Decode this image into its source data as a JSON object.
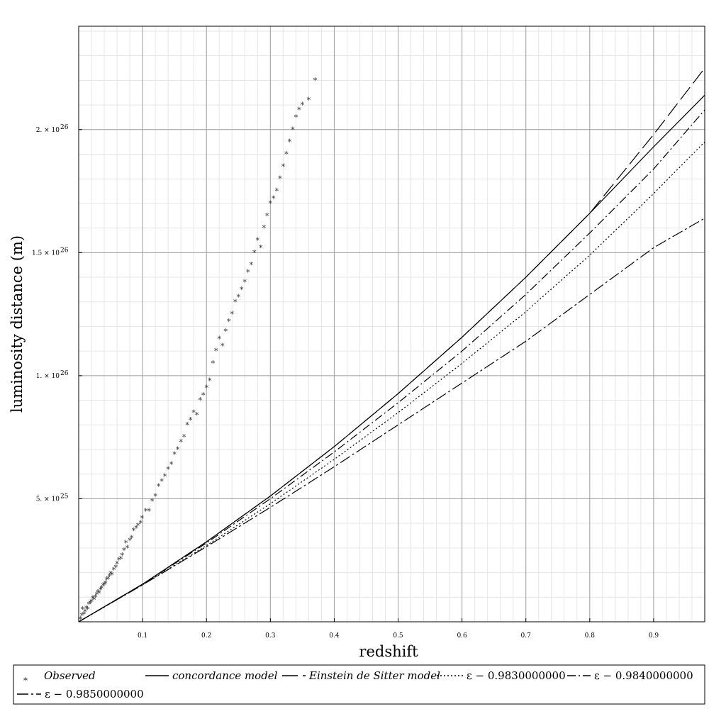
{
  "chart_data": {
    "type": "line",
    "title": "",
    "xlabel": "redshift",
    "ylabel": "luminosity distance (m)",
    "xlim": [
      0.0,
      0.98
    ],
    "ylim": [
      0,
      2.42e+26
    ],
    "x_ticks": [
      {
        "value": 0.1,
        "label": "0.1"
      },
      {
        "value": 0.2,
        "label": "0.2"
      },
      {
        "value": 0.3,
        "label": "0.3"
      },
      {
        "value": 0.4,
        "label": "0.4"
      },
      {
        "value": 0.5,
        "label": "0.5"
      },
      {
        "value": 0.6,
        "label": "0.6"
      },
      {
        "value": 0.7,
        "label": "0.7"
      },
      {
        "value": 0.8,
        "label": "0.8"
      },
      {
        "value": 0.9,
        "label": "0.9"
      }
    ],
    "y_ticks": [
      {
        "value": 5e+25,
        "mant": "5.",
        "base": "10",
        "exp": "25"
      },
      {
        "value": 1e+26,
        "mant": "1.",
        "base": "10",
        "exp": "26"
      },
      {
        "value": 1.5e+26,
        "mant": "1.5",
        "base": "10",
        "exp": "26"
      },
      {
        "value": 2e+26,
        "mant": "2.",
        "base": "10",
        "exp": "26"
      }
    ],
    "grid": true,
    "legend_position": "bottom",
    "series": [
      {
        "name": "Observed",
        "kind": "scatter",
        "points": [
          [
            0.003,
            1e+24
          ],
          [
            0.005,
            2.5e+24
          ],
          [
            0.006,
            5e+24
          ],
          [
            0.008,
            3e+24
          ],
          [
            0.01,
            4e+24
          ],
          [
            0.012,
            5.5e+24
          ],
          [
            0.014,
            5e+24
          ],
          [
            0.016,
            7e+24
          ],
          [
            0.018,
            7.5e+24
          ],
          [
            0.02,
            8e+24
          ],
          [
            0.022,
            9.5e+24
          ],
          [
            0.024,
            9e+24
          ],
          [
            0.026,
            1e+25
          ],
          [
            0.028,
            1.1e+25
          ],
          [
            0.03,
            1.2e+25
          ],
          [
            0.032,
            1.15e+25
          ],
          [
            0.034,
            1.3e+25
          ],
          [
            0.036,
            1.35e+25
          ],
          [
            0.038,
            1.45e+25
          ],
          [
            0.04,
            1.5e+25
          ],
          [
            0.042,
            1.55e+25
          ],
          [
            0.044,
            1.7e+25
          ],
          [
            0.046,
            1.75e+25
          ],
          [
            0.048,
            1.85e+25
          ],
          [
            0.05,
            1.95e+25
          ],
          [
            0.052,
            1.9e+25
          ],
          [
            0.055,
            2.1e+25
          ],
          [
            0.058,
            2.2e+25
          ],
          [
            0.06,
            2.35e+25
          ],
          [
            0.063,
            2.5e+25
          ],
          [
            0.066,
            2.55e+25
          ],
          [
            0.068,
            2.7e+25
          ],
          [
            0.071,
            2.9e+25
          ],
          [
            0.074,
            3.2e+25
          ],
          [
            0.076,
            3e+25
          ],
          [
            0.08,
            3.3e+25
          ],
          [
            0.083,
            3.4e+25
          ],
          [
            0.086,
            3.7e+25
          ],
          [
            0.09,
            3.8e+25
          ],
          [
            0.093,
            3.9e+25
          ],
          [
            0.097,
            4e+25
          ],
          [
            0.099,
            4.2e+25
          ],
          [
            0.105,
            4.5e+25
          ],
          [
            0.11,
            4.5e+25
          ],
          [
            0.115,
            4.9e+25
          ],
          [
            0.12,
            5.1e+25
          ],
          [
            0.125,
            5.5e+25
          ],
          [
            0.13,
            5.7e+25
          ],
          [
            0.135,
            5.9e+25
          ],
          [
            0.14,
            6.2e+25
          ],
          [
            0.145,
            6.4e+25
          ],
          [
            0.15,
            6.8e+25
          ],
          [
            0.155,
            7e+25
          ],
          [
            0.16,
            7.3e+25
          ],
          [
            0.165,
            7.5e+25
          ],
          [
            0.17,
            8e+25
          ],
          [
            0.175,
            8.2e+25
          ],
          [
            0.18,
            8.5e+25
          ],
          [
            0.185,
            8.4e+25
          ],
          [
            0.19,
            9e+25
          ],
          [
            0.195,
            9.2e+25
          ],
          [
            0.2,
            9.5e+25
          ],
          [
            0.205,
            9.8e+25
          ],
          [
            0.21,
            1.05e+26
          ],
          [
            0.215,
            1.1e+26
          ],
          [
            0.22,
            1.15e+26
          ],
          [
            0.225,
            1.12e+26
          ],
          [
            0.23,
            1.18e+26
          ],
          [
            0.235,
            1.22e+26
          ],
          [
            0.24,
            1.25e+26
          ],
          [
            0.245,
            1.3e+26
          ],
          [
            0.25,
            1.32e+26
          ],
          [
            0.255,
            1.35e+26
          ],
          [
            0.26,
            1.38e+26
          ],
          [
            0.265,
            1.42e+26
          ],
          [
            0.27,
            1.45e+26
          ],
          [
            0.275,
            1.5e+26
          ],
          [
            0.28,
            1.55e+26
          ],
          [
            0.285,
            1.52e+26
          ],
          [
            0.29,
            1.6e+26
          ],
          [
            0.295,
            1.65e+26
          ],
          [
            0.3,
            1.7e+26
          ],
          [
            0.305,
            1.72e+26
          ],
          [
            0.31,
            1.75e+26
          ],
          [
            0.315,
            1.8e+26
          ],
          [
            0.32,
            1.85e+26
          ],
          [
            0.325,
            1.9e+26
          ],
          [
            0.33,
            1.95e+26
          ],
          [
            0.335,
            2e+26
          ],
          [
            0.34,
            2.05e+26
          ],
          [
            0.345,
            2.08e+26
          ],
          [
            0.35,
            2.1e+26
          ],
          [
            0.36,
            2.12e+26
          ],
          [
            0.37,
            2.2e+26
          ]
        ]
      },
      {
        "name": "concordance model",
        "kind": "line",
        "dash": "none",
        "points": [
          [
            0,
            0
          ],
          [
            0.1,
            1.53e+25
          ],
          [
            0.2,
            3.25e+25
          ],
          [
            0.3,
            5.11e+25
          ],
          [
            0.4,
            7.12e+25
          ],
          [
            0.5,
            9.27e+25
          ],
          [
            0.6,
            1.156e+26
          ],
          [
            0.7,
            1.4e+26
          ],
          [
            0.8,
            1.66e+26
          ],
          [
            0.9,
            1.93e+26
          ],
          [
            0.98,
            2.14e+26
          ]
        ]
      },
      {
        "name": "Einstein de Sitter model",
        "kind": "line",
        "dash": "22,7",
        "points": [
          [
            0,
            0
          ],
          [
            0.1,
            1.53e+25
          ],
          [
            0.2,
            3.25e+25
          ],
          [
            0.3,
            5.11e+25
          ],
          [
            0.4,
            7.12e+25
          ],
          [
            0.5,
            9.27e+25
          ],
          [
            0.6,
            1.156e+26
          ],
          [
            0.7,
            1.4e+26
          ],
          [
            0.8,
            1.66e+26
          ],
          [
            0.9,
            1.98e+26
          ],
          [
            0.98,
            2.25e+26
          ]
        ]
      },
      {
        "name": "ε = 0.9830000000",
        "kind": "line",
        "dash": "2,3",
        "points": [
          [
            0,
            0
          ],
          [
            0.1,
            1.5e+25
          ],
          [
            0.2,
            3.1e+25
          ],
          [
            0.3,
            4.8e+25
          ],
          [
            0.4,
            6.6e+25
          ],
          [
            0.5,
            8.5e+25
          ],
          [
            0.6,
            1.05e+26
          ],
          [
            0.7,
            1.26e+26
          ],
          [
            0.8,
            1.49e+26
          ],
          [
            0.9,
            1.74e+26
          ],
          [
            0.98,
            1.95e+26
          ]
        ]
      },
      {
        "name": "ε = 0.9840000000",
        "kind": "line",
        "dash": "12,4,2,4",
        "points": [
          [
            0,
            0
          ],
          [
            0.1,
            1.52e+25
          ],
          [
            0.2,
            3.2e+25
          ],
          [
            0.3,
            5e+25
          ],
          [
            0.4,
            6.9e+25
          ],
          [
            0.5,
            8.9e+25
          ],
          [
            0.6,
            1.1e+26
          ],
          [
            0.7,
            1.33e+26
          ],
          [
            0.8,
            1.58e+26
          ],
          [
            0.9,
            1.84e+26
          ],
          [
            0.98,
            2.08e+26
          ]
        ]
      },
      {
        "name": "ε = 0.9850000000",
        "kind": "line",
        "dash": "16,4,3,4",
        "points": [
          [
            0,
            0
          ],
          [
            0.1,
            1.5e+25
          ],
          [
            0.2,
            3.05e+25
          ],
          [
            0.3,
            4.65e+25
          ],
          [
            0.4,
            6.3e+25
          ],
          [
            0.5,
            8e+25
          ],
          [
            0.6,
            9.7e+25
          ],
          [
            0.7,
            1.14e+26
          ],
          [
            0.8,
            1.33e+26
          ],
          [
            0.9,
            1.52e+26
          ],
          [
            0.98,
            1.64e+26
          ]
        ]
      }
    ],
    "legend": [
      {
        "label": "Observed",
        "italic": true
      },
      {
        "label": "concordance model",
        "italic": true
      },
      {
        "label": "Einstein de Sitter model",
        "italic": true
      },
      {
        "label": "ε − 0.9830000000",
        "italic": false
      },
      {
        "label": "ε − 0.9840000000",
        "italic": false
      },
      {
        "label": "ε − 0.9850000000",
        "italic": false
      }
    ]
  }
}
